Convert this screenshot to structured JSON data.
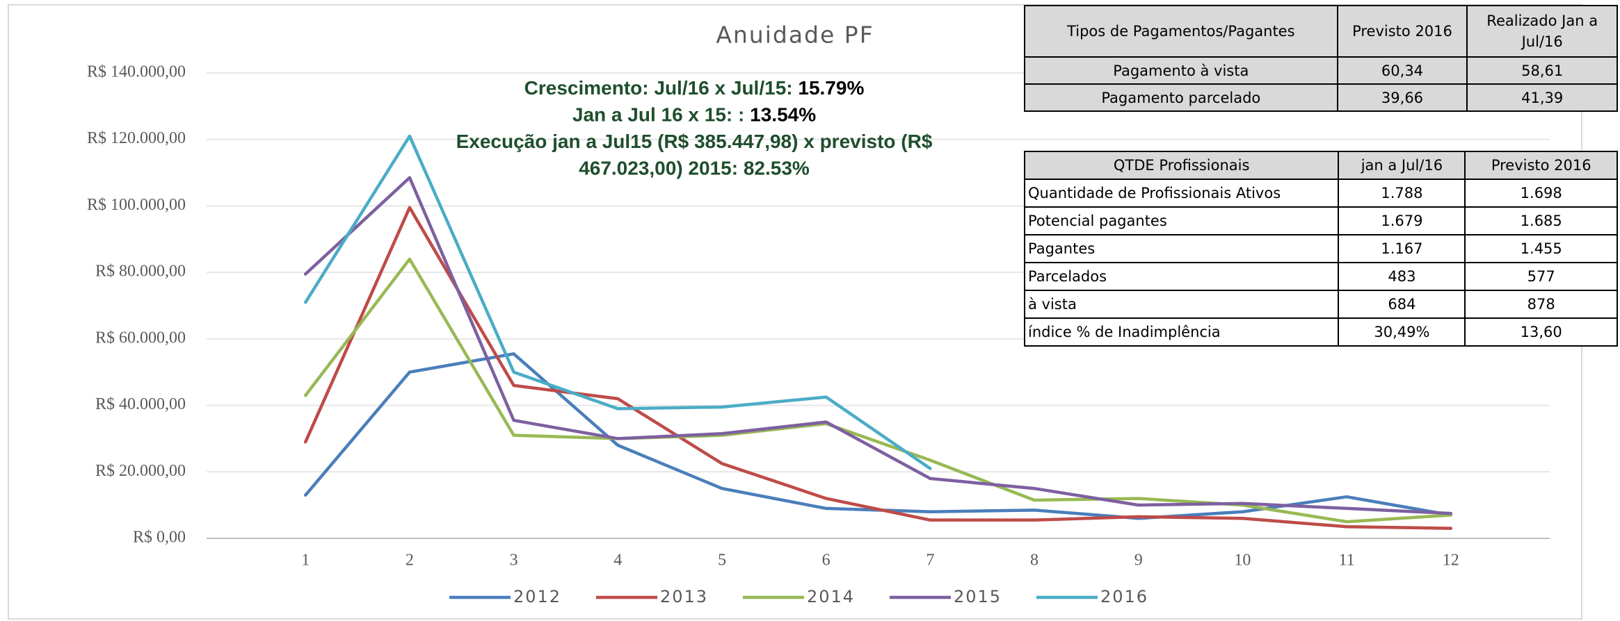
{
  "chart_data": {
    "type": "line",
    "title": "Anuidade PF",
    "x": [
      1,
      2,
      3,
      4,
      5,
      6,
      7,
      8,
      9,
      10,
      11,
      12
    ],
    "xlim": [
      0.05,
      12.95
    ],
    "xticks": [
      1,
      2,
      3,
      4,
      5,
      6,
      7,
      8,
      9,
      10,
      11,
      12
    ],
    "ylim": [
      0,
      140000
    ],
    "yticks": [
      {
        "value": 0,
        "label": "R$ 0,00"
      },
      {
        "value": 20000,
        "label": "R$ 20.000,00"
      },
      {
        "value": 40000,
        "label": "R$ 40.000,00"
      },
      {
        "value": 60000,
        "label": "R$ 60.000,00"
      },
      {
        "value": 80000,
        "label": "R$ 80.000,00"
      },
      {
        "value": 100000,
        "label": "R$ 100.000,00"
      },
      {
        "value": 120000,
        "label": "R$ 120.000,00"
      },
      {
        "value": 140000,
        "label": "R$ 140.000,00"
      }
    ],
    "grid": true,
    "legend": "bottom",
    "series": [
      {
        "name": "2012",
        "color": "#4a7ebb",
        "values": [
          13000,
          50000,
          55500,
          28000,
          15000,
          9000,
          8000,
          8500,
          6000,
          8000,
          12500,
          7000
        ]
      },
      {
        "name": "2013",
        "color": "#be4b48",
        "values": [
          29000,
          99500,
          46000,
          42000,
          22500,
          12000,
          5500,
          5500,
          6500,
          6000,
          3500,
          3000
        ]
      },
      {
        "name": "2014",
        "color": "#98b954",
        "values": [
          43000,
          84000,
          31000,
          30000,
          31000,
          34500,
          23500,
          11500,
          12000,
          10000,
          5000,
          7000
        ]
      },
      {
        "name": "2015",
        "color": "#7d60a0",
        "values": [
          79500,
          108500,
          35500,
          30000,
          31500,
          35000,
          18000,
          15000,
          10000,
          10500,
          9000,
          7500
        ]
      },
      {
        "name": "2016",
        "color": "#4bacc6",
        "values": [
          71000,
          121000,
          50000,
          39000,
          39500,
          42500,
          21000,
          null,
          null,
          null,
          null,
          null
        ]
      }
    ],
    "annotations": [
      {
        "text": "Crescimento: Jul/16 x Jul/15:",
        "value": "15.79%"
      },
      {
        "text": "Jan a Jul 16 x 15: :",
        "value": "13.54%"
      },
      {
        "text": "Execução jan a Jul15 (R$ 385.447,98) x previsto (R$"
      },
      {
        "text": "467.023,00) 2015: 82.53%"
      }
    ]
  },
  "tables": [
    {
      "header": [
        "Tipos de Pagamentos/Pagantes",
        "Previsto 2016",
        "Realizado Jan a Jul/16"
      ],
      "rows": [
        [
          "Pagamento à vista",
          "60,34",
          "58,61"
        ],
        [
          "Pagamento parcelado",
          "39,66",
          "41,39"
        ]
      ]
    },
    {
      "header": [
        "QTDE Profissionais",
        "jan a Jul/16",
        "Previsto 2016"
      ],
      "rows": [
        [
          "Quantidade de Profissionais Ativos",
          "1.788",
          "1.698"
        ],
        [
          "Potencial pagantes",
          "1.679",
          "1.685"
        ],
        [
          "Pagantes",
          "1.167",
          "1.455"
        ],
        [
          "Parcelados",
          "483",
          "577"
        ],
        [
          "à vista",
          "684",
          "878"
        ],
        [
          "índice % de Inadimplência",
          "30,49%",
          "13,60"
        ]
      ]
    }
  ]
}
